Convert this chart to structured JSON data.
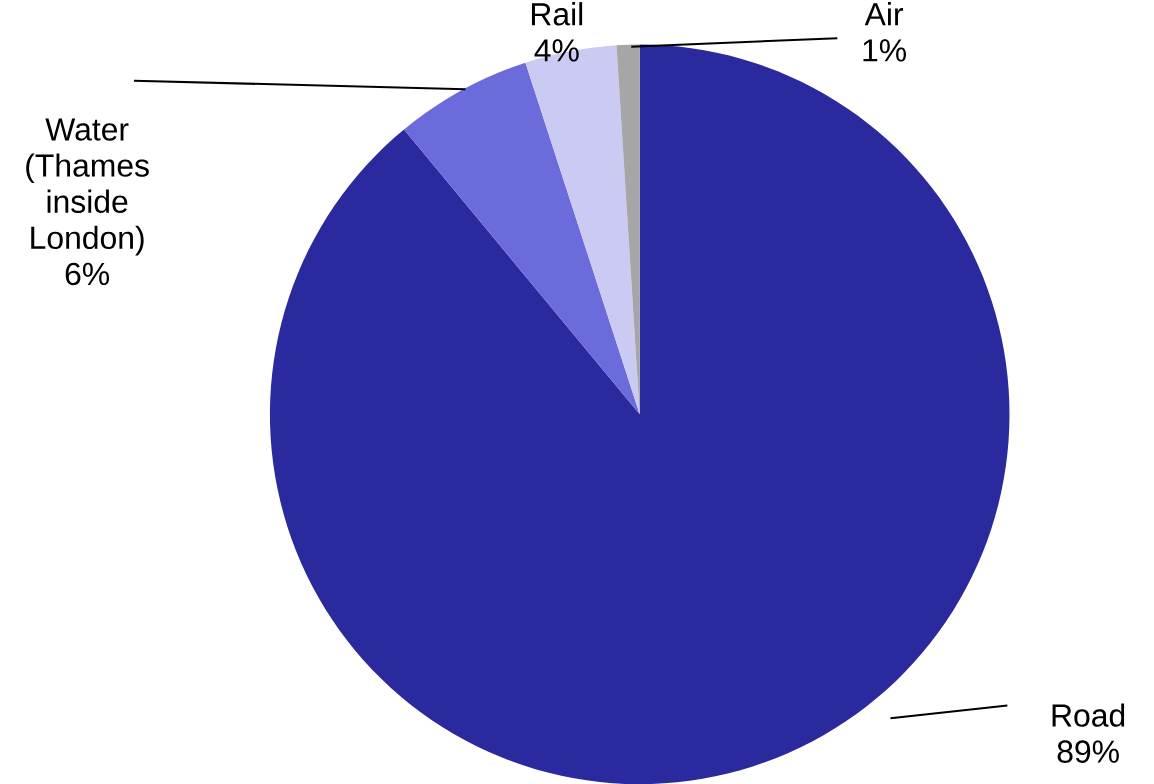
{
  "chart_data": {
    "type": "pie",
    "categories": [
      "Road",
      "Water (Thames inside London)",
      "Rail",
      "Air"
    ],
    "values": [
      89,
      6,
      4,
      1
    ],
    "value_labels": [
      "89%",
      "6%",
      "4%",
      "1%"
    ],
    "colors": [
      "#2a2a9e",
      "#6b6bdc",
      "#cacaf2",
      "#a6a6a6"
    ]
  }
}
